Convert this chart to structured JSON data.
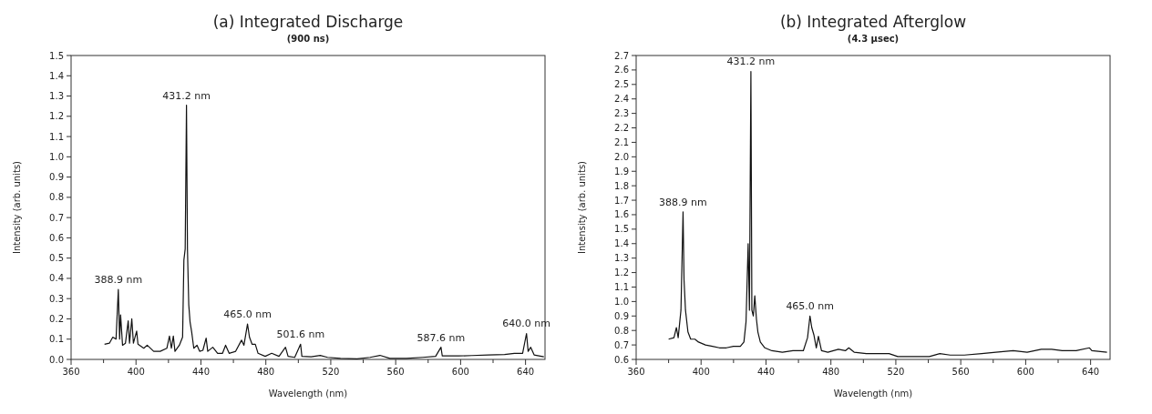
{
  "chart_data": [
    {
      "type": "line",
      "title": "(a) Integrated Discharge",
      "subtitle": "(900 ns)",
      "xlabel": "Wavelength (nm)",
      "ylabel": "Intensity (arb. units)",
      "xlim": [
        360,
        652
      ],
      "ylim": [
        0,
        1.5
      ],
      "xticks": [
        360,
        {
          "value": 380,
          "label": null
        },
        400,
        {
          "value": 420,
          "label": null
        },
        440,
        {
          "value": 460,
          "label": null
        },
        480,
        {
          "value": 500,
          "label": null
        },
        520,
        {
          "value": 540,
          "label": null
        },
        560,
        {
          "value": 580,
          "label": null
        },
        600,
        {
          "value": 620,
          "label": null
        },
        640
      ],
      "yticks": [
        {
          "value": 0,
          "label": "0.0"
        },
        0.1,
        0.2,
        0.3,
        0.4,
        0.5,
        0.6,
        0.7,
        0.8,
        0.9,
        {
          "value": 1,
          "label": "1.0"
        },
        1.1,
        1.2,
        1.3,
        1.4,
        1.5
      ],
      "grid": false,
      "annotations": [
        {
          "text": "388.9 nm",
          "x": 389.1,
          "y": 0.345
        },
        {
          "text": "431.2 nm",
          "x": 431.1,
          "y": 1.255
        },
        {
          "text": "465.0 nm",
          "x": 468.7,
          "y": 0.175
        },
        {
          "text": "501.6 nm",
          "x": 501.4,
          "y": 0.075
        },
        {
          "text": "587.6 nm",
          "x": 587.9,
          "y": 0.06
        },
        {
          "text": "640.0 nm",
          "x": 640.6,
          "y": 0.128
        }
      ],
      "series": [
        {
          "color": "#111111",
          "x": [
            380.6,
            383.6,
            385.7,
            387.7,
            389.1,
            389.9,
            390.5,
            391.7,
            393.5,
            395.2,
            396,
            397.4,
            398.4,
            400.4,
            401.2,
            404.8,
            406.9,
            410.9,
            414.9,
            419,
            420.6,
            421.8,
            423,
            424,
            426.7,
            428.7,
            429.5,
            430.3,
            431.1,
            431.7,
            432.5,
            433.3,
            434.3,
            435.6,
            437.6,
            439.2,
            441.2,
            443.2,
            444.2,
            447.3,
            450.3,
            453.3,
            455.2,
            457.4,
            461.4,
            465,
            466.5,
            468.7,
            469.9,
            471.5,
            473.5,
            475.2,
            479.6,
            483.6,
            488.1,
            492.1,
            493.7,
            497.8,
            501.4,
            502.2,
            507.9,
            513.5,
            518,
            526,
            536.2,
            544.2,
            550.3,
            556.4,
            566.5,
            576.6,
            584.6,
            587.9,
            588.7,
            598.8,
            606.9,
            617,
            627.1,
            633.1,
            638.2,
            640.6,
            641.6,
            643.2,
            645.3,
            651.3
          ],
          "values": [
            0.075,
            0.08,
            0.11,
            0.1,
            0.345,
            0.1,
            0.22,
            0.07,
            0.08,
            0.19,
            0.08,
            0.2,
            0.08,
            0.14,
            0.075,
            0.055,
            0.07,
            0.04,
            0.04,
            0.055,
            0.115,
            0.055,
            0.115,
            0.04,
            0.07,
            0.11,
            0.49,
            0.545,
            1.255,
            0.545,
            0.27,
            0.185,
            0.135,
            0.055,
            0.07,
            0.04,
            0.045,
            0.105,
            0.04,
            0.06,
            0.03,
            0.03,
            0.07,
            0.03,
            0.04,
            0.095,
            0.07,
            0.175,
            0.11,
            0.075,
            0.075,
            0.03,
            0.015,
            0.03,
            0.015,
            0.06,
            0.015,
            0.01,
            0.075,
            0.015,
            0.013,
            0.02,
            0.01,
            0.005,
            0.003,
            0.01,
            0.02,
            0.005,
            0.005,
            0.01,
            0.015,
            0.06,
            0.017,
            0.017,
            0.019,
            0.022,
            0.024,
            0.03,
            0.03,
            0.128,
            0.04,
            0.06,
            0.022,
            0.013
          ]
        }
      ]
    },
    {
      "type": "line",
      "title": "(b) Integrated Afterglow",
      "subtitle": "(4.3 µsec)",
      "xlabel": "Wavelength (nm)",
      "ylabel": "Intensity (arb. units)",
      "xlim": [
        360,
        652
      ],
      "ylim": [
        0.6,
        2.7
      ],
      "xticks": [
        360,
        {
          "value": 380,
          "label": null
        },
        400,
        {
          "value": 420,
          "label": null
        },
        440,
        {
          "value": 460,
          "label": null
        },
        480,
        {
          "value": 500,
          "label": null
        },
        520,
        {
          "value": 540,
          "label": null
        },
        560,
        {
          "value": 580,
          "label": null
        },
        600,
        {
          "value": 620,
          "label": null
        },
        640
      ],
      "yticks": [
        0.6,
        0.7,
        0.8,
        0.9,
        {
          "value": 1,
          "label": "1.0"
        },
        1.1,
        1.2,
        1.3,
        1.4,
        1.5,
        1.6,
        1.7,
        1.8,
        1.9,
        {
          "value": 2,
          "label": "2.0"
        },
        2.1,
        2.2,
        2.3,
        2.4,
        2.5,
        2.6,
        2.7
      ],
      "grid": false,
      "annotations": [
        {
          "text": "388.9 nm",
          "x": 388.9,
          "y": 1.62
        },
        {
          "text": "431.2 nm",
          "x": 430.7,
          "y": 2.59
        },
        {
          "text": "465.0 nm",
          "x": 467.1,
          "y": 0.9
        }
      ],
      "series": [
        {
          "color": "#111111",
          "x": [
            380,
            383.3,
            384.8,
            385.9,
            387.6,
            388.9,
            389.5,
            390.4,
            391.9,
            393.6,
            396.2,
            398.4,
            402.7,
            407,
            411.3,
            415.6,
            419.9,
            424.2,
            426.4,
            427.7,
            429,
            429.8,
            430.7,
            431.3,
            432.2,
            433.1,
            434.1,
            435,
            436.5,
            439.3,
            443.6,
            450.1,
            456.6,
            463,
            465.6,
            467.1,
            468.2,
            469.5,
            471,
            472.3,
            474.2,
            478.1,
            484.6,
            488.9,
            491,
            494.3,
            501.8,
            510.4,
            515.8,
            521.2,
            532,
            540.6,
            547.1,
            553.5,
            562.2,
            572.9,
            581.6,
            592.3,
            600.9,
            609.6,
            616,
            622.5,
            631.1,
            639.3,
            640.8,
            650.1
          ],
          "values": [
            0.74,
            0.75,
            0.82,
            0.75,
            0.94,
            1.62,
            1.15,
            0.94,
            0.79,
            0.74,
            0.74,
            0.72,
            0.7,
            0.69,
            0.68,
            0.68,
            0.69,
            0.69,
            0.72,
            0.86,
            1.4,
            0.94,
            2.59,
            0.94,
            0.9,
            1.04,
            0.88,
            0.79,
            0.72,
            0.68,
            0.66,
            0.65,
            0.66,
            0.66,
            0.75,
            0.9,
            0.82,
            0.77,
            0.68,
            0.76,
            0.66,
            0.65,
            0.67,
            0.66,
            0.68,
            0.65,
            0.64,
            0.64,
            0.64,
            0.62,
            0.62,
            0.62,
            0.64,
            0.63,
            0.63,
            0.64,
            0.65,
            0.66,
            0.65,
            0.67,
            0.67,
            0.66,
            0.66,
            0.68,
            0.66,
            0.65
          ]
        }
      ]
    }
  ]
}
